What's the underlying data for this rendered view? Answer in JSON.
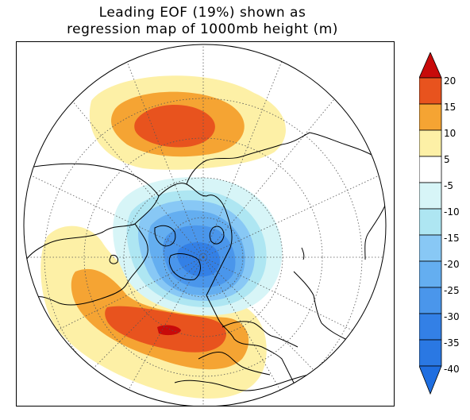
{
  "title": {
    "line1": "Leading EOF (19%) shown as",
    "line2": "regression map of 1000mb height (m)"
  },
  "colorbar": {
    "labels": [
      "20",
      "15",
      "10",
      "5",
      "-5",
      "-10",
      "-15",
      "-20",
      "-25",
      "-30",
      "-35",
      "-40"
    ],
    "colors": {
      "above_20": "#c80a0a",
      "15_20": "#e8531e",
      "10_15": "#f5a433",
      "5_10": "#fdf0a6",
      "-5_5": "#ffffff",
      "-10_-5": "#d7f5f7",
      "-15_-10": "#aee6f2",
      "-20_-15": "#88c8f5",
      "-25_-20": "#64aef0",
      "-30_-25": "#4a96eb",
      "-35_-30": "#3380e6",
      "below_-40": "#1f6ee0"
    }
  }
}
